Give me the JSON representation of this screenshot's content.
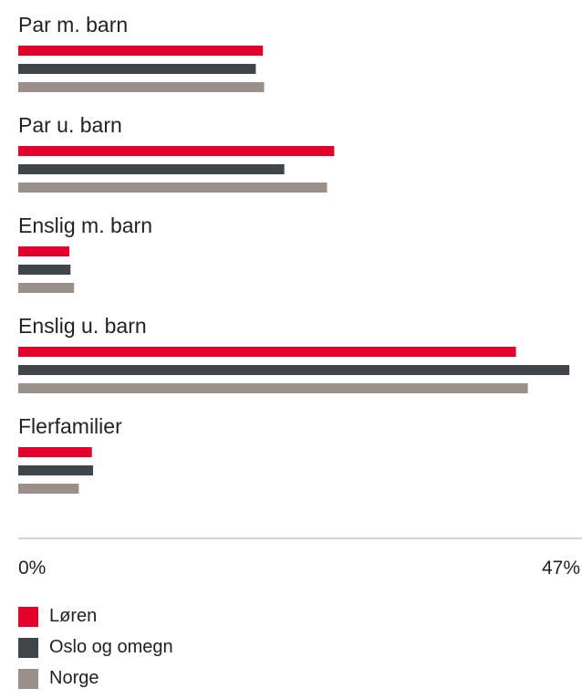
{
  "chart_data": {
    "type": "bar",
    "orientation": "horizontal",
    "categories": [
      "Par m. barn",
      "Par u. barn",
      "Enslig m. barn",
      "Enslig u. barn",
      "Flerfamilier"
    ],
    "series": [
      {
        "name": "Løren",
        "color": "#e4002b",
        "values": [
          20.6,
          26.6,
          4.3,
          41.9,
          6.2
        ]
      },
      {
        "name": "Oslo og omegn",
        "color": "#3f4548",
        "values": [
          20.0,
          22.4,
          4.4,
          46.4,
          6.3
        ]
      },
      {
        "name": "Norge",
        "color": "#9a9089",
        "values": [
          20.7,
          26.0,
          4.7,
          42.9,
          5.1
        ]
      }
    ],
    "xlim": [
      0,
      47
    ],
    "tick_labels": [
      "0%",
      "47%"
    ],
    "legend_position": "bottom-left",
    "grid": false
  }
}
